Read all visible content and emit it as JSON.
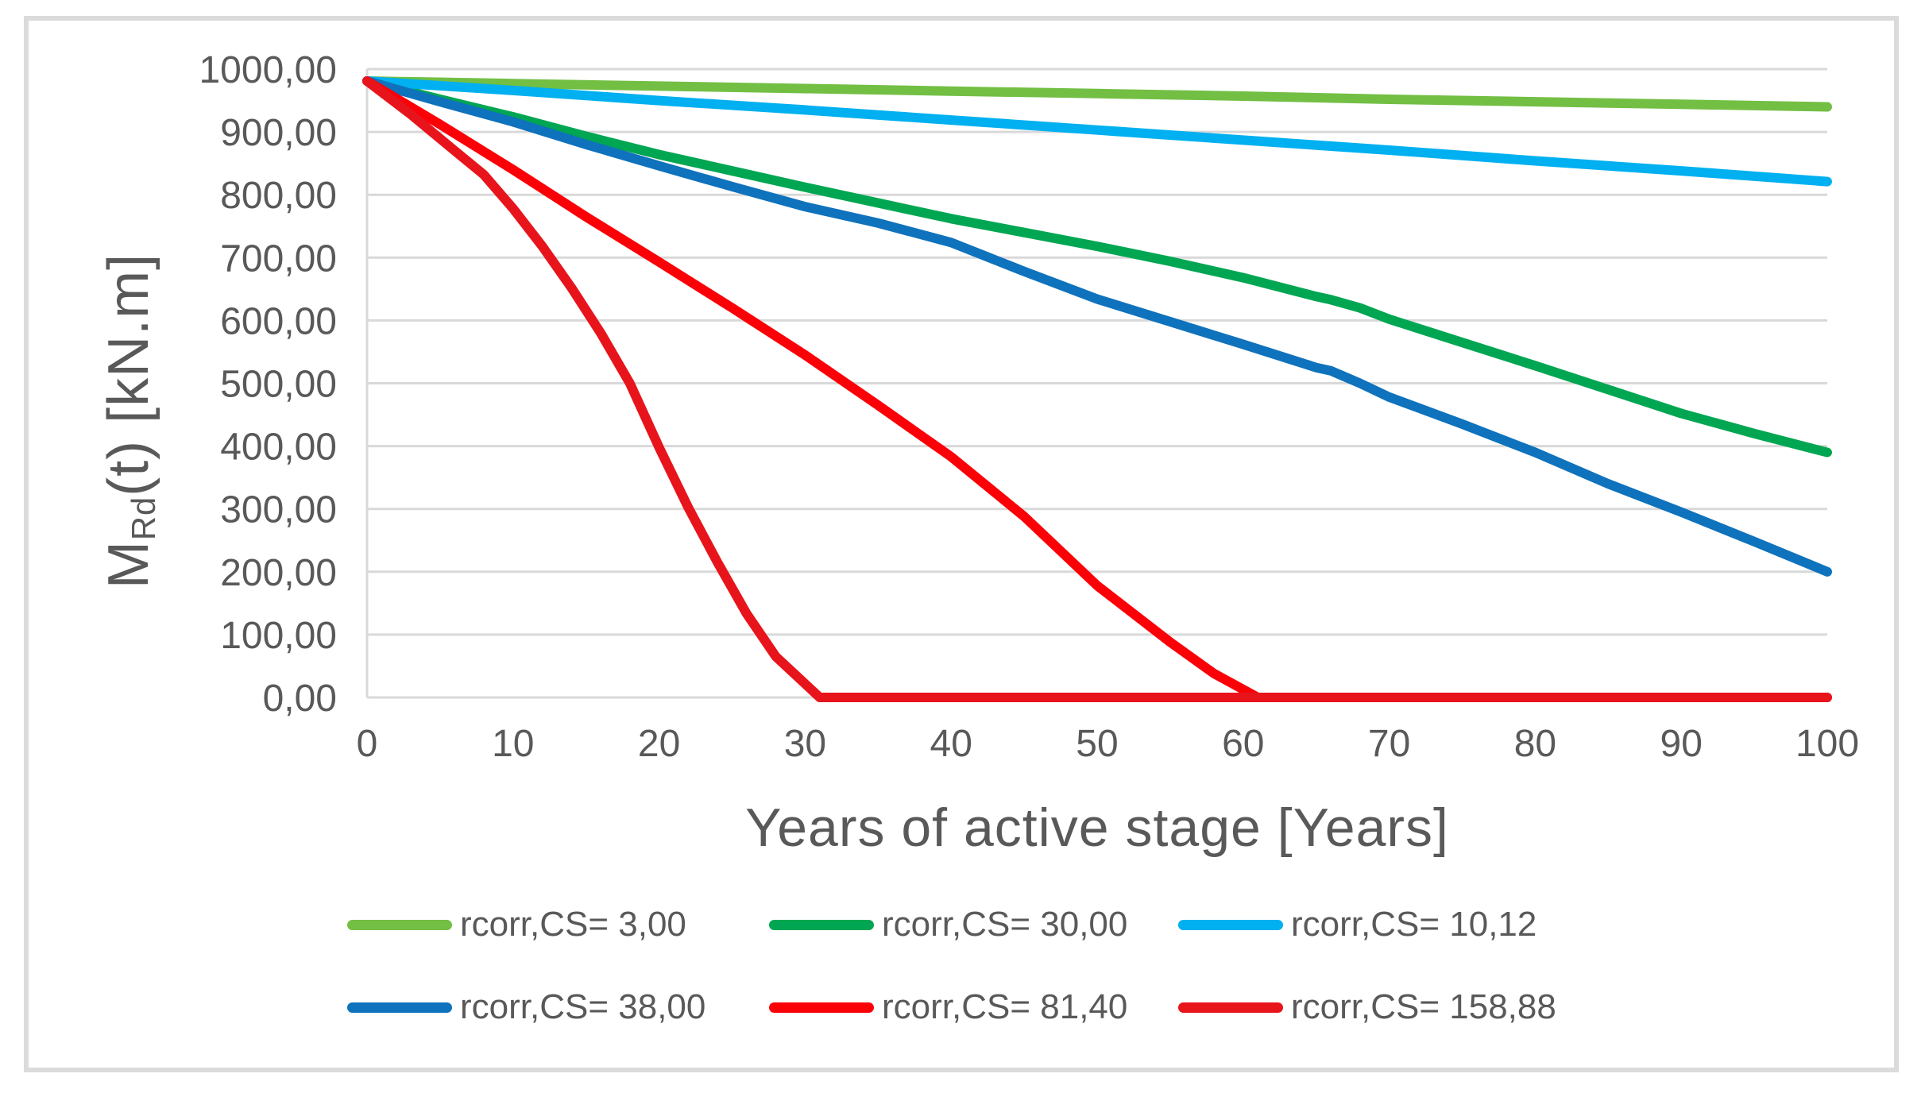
{
  "figure": {
    "background": "#FFFFFF",
    "border_color": "#DBDBDB",
    "text_color": "#595959",
    "gridline_color": "#D9D9D9"
  },
  "chart_data": {
    "type": "line",
    "title": "",
    "xlabel": "Years of active stage [Years]",
    "ylabel": {
      "prefix": "M",
      "subscript": "Rd",
      "suffix": "(t) [kN.m]"
    },
    "xlim": [
      0,
      100
    ],
    "ylim": [
      0,
      1000
    ],
    "x_ticks": [
      0,
      10,
      20,
      30,
      40,
      50,
      60,
      70,
      80,
      90,
      100
    ],
    "y_ticks": [
      0,
      100,
      200,
      300,
      400,
      500,
      600,
      700,
      800,
      900,
      1000
    ],
    "y_tick_labels": [
      "0,00",
      "100,00",
      "200,00",
      "300,00",
      "400,00",
      "500,00",
      "600,00",
      "700,00",
      "800,00",
      "900,00",
      "1000,00"
    ],
    "decimal_separator": ",",
    "grid": "horizontal",
    "legend_position": "bottom",
    "legend_rows": [
      [
        0,
        1,
        2
      ],
      [
        3,
        4,
        5
      ]
    ],
    "series": [
      {
        "name": "rcorr,CS= 3,00",
        "color": "#72BF44",
        "x": [
          0,
          10,
          20,
          30,
          40,
          50,
          60,
          70,
          80,
          90,
          100
        ],
        "y": [
          981,
          977,
          973,
          969,
          965,
          961,
          957,
          952,
          948,
          944,
          940
        ]
      },
      {
        "name": "rcorr,CS= 30,00",
        "color": "#00A651",
        "x": [
          0,
          5,
          10,
          15,
          20,
          25,
          30,
          35,
          40,
          45,
          50,
          55,
          60,
          65,
          66,
          68,
          70,
          75,
          80,
          85,
          90,
          95,
          100
        ],
        "y": [
          981,
          952,
          924,
          893,
          864,
          838,
          812,
          787,
          762,
          740,
          718,
          694,
          668,
          638,
          633,
          620,
          602,
          565,
          528,
          490,
          452,
          420,
          390
        ]
      },
      {
        "name": "rcorr,CS= 10,12",
        "color": "#00B0F0",
        "x": [
          0,
          10,
          20,
          30,
          40,
          50,
          60,
          70,
          80,
          90,
          100
        ],
        "y": [
          981,
          966,
          950,
          935,
          919,
          903,
          887,
          871,
          854,
          838,
          821
        ]
      },
      {
        "name": "rcorr,CS= 38,00",
        "color": "#0F72BC",
        "x": [
          0,
          5,
          10,
          15,
          20,
          25,
          30,
          35,
          40,
          45,
          50,
          55,
          60,
          65,
          66,
          68,
          70,
          75,
          80,
          85,
          90,
          95,
          100
        ],
        "y": [
          981,
          948,
          916,
          880,
          846,
          813,
          781,
          755,
          724,
          678,
          634,
          598,
          562,
          525,
          520,
          500,
          478,
          435,
          390,
          340,
          295,
          248,
          200
        ]
      },
      {
        "name": "rcorr,CS= 81,40",
        "color": "#FB0007",
        "x": [
          0,
          5,
          10,
          15,
          20,
          25,
          30,
          35,
          40,
          45,
          50,
          55,
          58,
          61,
          65,
          70,
          80,
          90,
          100
        ],
        "y": [
          981,
          912,
          840,
          765,
          693,
          620,
          545,
          465,
          383,
          288,
          178,
          88,
          38,
          0,
          0,
          0,
          0,
          0,
          0
        ]
      },
      {
        "name": "rcorr,CS= 158,88",
        "color": "#E8141C",
        "x": [
          0,
          3,
          6,
          8,
          10,
          12,
          14,
          16,
          18,
          20,
          22,
          24,
          26,
          28,
          31,
          40,
          50,
          60,
          70,
          80,
          90,
          100
        ],
        "y": [
          981,
          928,
          870,
          832,
          778,
          718,
          652,
          580,
          500,
          398,
          302,
          215,
          133,
          65,
          0,
          0,
          0,
          0,
          0,
          0,
          0,
          0
        ]
      }
    ]
  }
}
